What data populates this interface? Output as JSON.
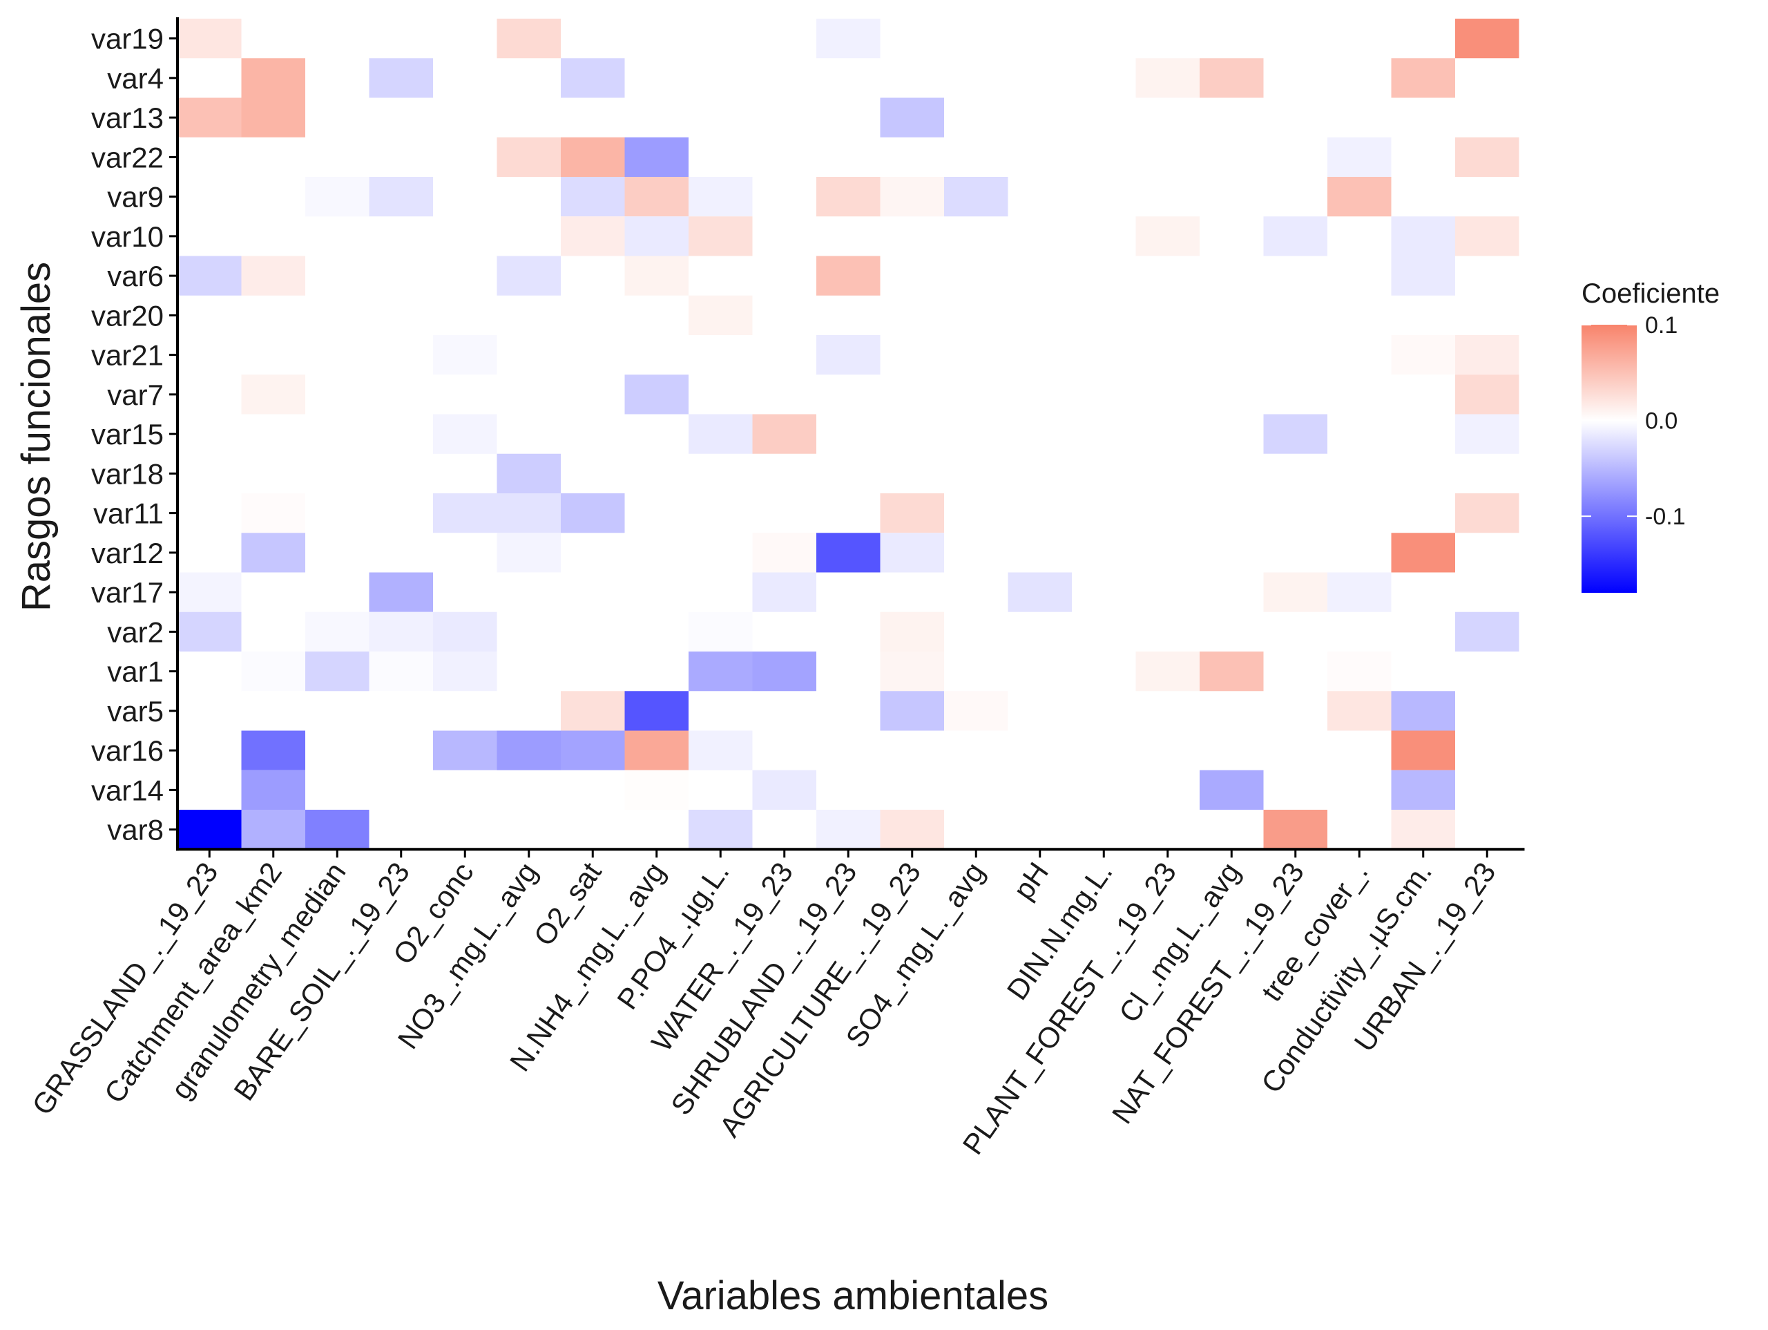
{
  "chart_data": {
    "type": "heatmap",
    "xlabel": "Variables ambientales",
    "ylabel": "Rasgos funcionales",
    "x_categories": [
      "GRASSLAND_._19_23",
      "Catchment_area_km2",
      "granulometry_median",
      "BARE_SOIL_._19_23",
      "O2_conc",
      "NO3_.mg.L._avg",
      "O2_sat",
      "N.NH4_.mg.L._avg",
      "P.PO4_.µg.L.",
      "WATER_._19_23",
      "SHRUBLAND_._19_23",
      "AGRICULTURE_._19_23",
      "SO4_.mg.L._avg",
      "pH",
      "DIN.N.mg.L.",
      "PLANT_FOREST_._19_23",
      "Cl_.mg.L._avg",
      "NAT_FOREST_._19_23",
      "tree_cover_.",
      "Conductivity_.µS.cm.",
      "URBAN_._19_23"
    ],
    "y_categories": [
      "var19",
      "var4",
      "var13",
      "var22",
      "var9",
      "var10",
      "var6",
      "var20",
      "var21",
      "var7",
      "var15",
      "var18",
      "var11",
      "var12",
      "var17",
      "var2",
      "var1",
      "var5",
      "var16",
      "var14",
      "var8"
    ],
    "cells": [
      [
        "var19",
        "GRASSLAND_._19_23",
        0.02
      ],
      [
        "var19",
        "NO3_.mg.L._avg",
        0.03
      ],
      [
        "var19",
        "SHRUBLAND_._19_23",
        -0.01
      ],
      [
        "var19",
        "URBAN_._19_23",
        0.09
      ],
      [
        "var4",
        "Catchment_area_km2",
        0.06
      ],
      [
        "var4",
        "BARE_SOIL_._19_23",
        -0.03
      ],
      [
        "var4",
        "O2_sat",
        -0.03
      ],
      [
        "var4",
        "PLANT_FOREST_._19_23",
        0.01
      ],
      [
        "var4",
        "Cl_.mg.L._avg",
        0.04
      ],
      [
        "var4",
        "Conductivity_.µS.cm.",
        0.05
      ],
      [
        "var13",
        "GRASSLAND_._19_23",
        0.05
      ],
      [
        "var13",
        "Catchment_area_km2",
        0.06
      ],
      [
        "var13",
        "AGRICULTURE_._19_23",
        -0.04
      ],
      [
        "var22",
        "NO3_.mg.L._avg",
        0.03
      ],
      [
        "var22",
        "O2_sat",
        0.06
      ],
      [
        "var22",
        "N.NH4_.mg.L._avg",
        -0.07
      ],
      [
        "var22",
        "tree_cover_.",
        -0.01
      ],
      [
        "var22",
        "URBAN_._19_23",
        0.03
      ],
      [
        "var9",
        "granulometry_median",
        -0.005
      ],
      [
        "var9",
        "BARE_SOIL_._19_23",
        -0.02
      ],
      [
        "var9",
        "O2_sat",
        -0.025
      ],
      [
        "var9",
        "N.NH4_.mg.L._avg",
        0.04
      ],
      [
        "var9",
        "P.PO4_.µg.L.",
        -0.01
      ],
      [
        "var9",
        "SHRUBLAND_._19_23",
        0.03
      ],
      [
        "var9",
        "AGRICULTURE_._19_23",
        0.008
      ],
      [
        "var9",
        "SO4_.mg.L._avg",
        -0.025
      ],
      [
        "var9",
        "tree_cover_.",
        0.05
      ],
      [
        "var10",
        "O2_sat",
        0.015
      ],
      [
        "var10",
        "N.NH4_.mg.L._avg",
        -0.015
      ],
      [
        "var10",
        "P.PO4_.µg.L.",
        0.025
      ],
      [
        "var10",
        "PLANT_FOREST_._19_23",
        0.01
      ],
      [
        "var10",
        "NAT_FOREST_._19_23",
        -0.015
      ],
      [
        "var10",
        "Conductivity_.µS.cm.",
        -0.015
      ],
      [
        "var10",
        "URBAN_._19_23",
        0.02
      ],
      [
        "var6",
        "GRASSLAND_._19_23",
        -0.03
      ],
      [
        "var6",
        "Catchment_area_km2",
        0.015
      ],
      [
        "var6",
        "NO3_.mg.L._avg",
        -0.02
      ],
      [
        "var6",
        "N.NH4_.mg.L._avg",
        0.01
      ],
      [
        "var6",
        "SHRUBLAND_._19_23",
        0.05
      ],
      [
        "var6",
        "Conductivity_.µS.cm.",
        -0.015
      ],
      [
        "var20",
        "P.PO4_.µg.L.",
        0.01
      ],
      [
        "var21",
        "O2_conc",
        -0.005
      ],
      [
        "var21",
        "SHRUBLAND_._19_23",
        -0.015
      ],
      [
        "var21",
        "Conductivity_.µS.cm.",
        0.005
      ],
      [
        "var21",
        "URBAN_._19_23",
        0.015
      ],
      [
        "var7",
        "Catchment_area_km2",
        0.01
      ],
      [
        "var7",
        "N.NH4_.mg.L._avg",
        -0.035
      ],
      [
        "var7",
        "URBAN_._19_23",
        0.03
      ],
      [
        "var15",
        "O2_conc",
        -0.008
      ],
      [
        "var15",
        "P.PO4_.µg.L.",
        -0.015
      ],
      [
        "var15",
        "WATER_._19_23",
        0.04
      ],
      [
        "var15",
        "NAT_FOREST_._19_23",
        -0.03
      ],
      [
        "var15",
        "URBAN_._19_23",
        -0.01
      ],
      [
        "var18",
        "NO3_.mg.L._avg",
        -0.035
      ],
      [
        "var11",
        "Catchment_area_km2",
        0.003
      ],
      [
        "var11",
        "O2_conc",
        -0.02
      ],
      [
        "var11",
        "NO3_.mg.L._avg",
        -0.02
      ],
      [
        "var11",
        "O2_sat",
        -0.04
      ],
      [
        "var11",
        "AGRICULTURE_._19_23",
        0.03
      ],
      [
        "var11",
        "URBAN_._19_23",
        0.03
      ],
      [
        "var12",
        "Catchment_area_km2",
        -0.04
      ],
      [
        "var12",
        "NO3_.mg.L._avg",
        -0.008
      ],
      [
        "var12",
        "WATER_._19_23",
        0.005
      ],
      [
        "var12",
        "SHRUBLAND_._19_23",
        -0.12
      ],
      [
        "var12",
        "AGRICULTURE_._19_23",
        -0.015
      ],
      [
        "var12",
        "Conductivity_.µS.cm.",
        0.09
      ],
      [
        "var17",
        "GRASSLAND_._19_23",
        -0.008
      ],
      [
        "var17",
        "BARE_SOIL_._19_23",
        -0.055
      ],
      [
        "var17",
        "WATER_._19_23",
        -0.015
      ],
      [
        "var17",
        "pH",
        -0.02
      ],
      [
        "var17",
        "NAT_FOREST_._19_23",
        0.01
      ],
      [
        "var17",
        "tree_cover_.",
        -0.01
      ],
      [
        "var2",
        "GRASSLAND_._19_23",
        -0.03
      ],
      [
        "var2",
        "granulometry_median",
        -0.005
      ],
      [
        "var2",
        "BARE_SOIL_._19_23",
        -0.01
      ],
      [
        "var2",
        "O2_conc",
        -0.015
      ],
      [
        "var2",
        "P.PO4_.µg.L.",
        -0.003
      ],
      [
        "var2",
        "AGRICULTURE_._19_23",
        0.01
      ],
      [
        "var2",
        "URBAN_._19_23",
        -0.03
      ],
      [
        "var1",
        "Catchment_area_km2",
        -0.003
      ],
      [
        "var1",
        "granulometry_median",
        -0.03
      ],
      [
        "var1",
        "BARE_SOIL_._19_23",
        -0.003
      ],
      [
        "var1",
        "O2_conc",
        -0.01
      ],
      [
        "var1",
        "P.PO4_.µg.L.",
        -0.06
      ],
      [
        "var1",
        "WATER_._19_23",
        -0.065
      ],
      [
        "var1",
        "AGRICULTURE_._19_23",
        0.008
      ],
      [
        "var1",
        "PLANT_FOREST_._19_23",
        0.01
      ],
      [
        "var1",
        "Cl_.mg.L._avg",
        0.05
      ],
      [
        "var1",
        "tree_cover_.",
        0.003
      ],
      [
        "var5",
        "O2_sat",
        0.025
      ],
      [
        "var5",
        "N.NH4_.mg.L._avg",
        -0.12
      ],
      [
        "var5",
        "AGRICULTURE_._19_23",
        -0.04
      ],
      [
        "var5",
        "SO4_.mg.L._avg",
        0.005
      ],
      [
        "var5",
        "tree_cover_.",
        0.02
      ],
      [
        "var5",
        "Conductivity_.µS.cm.",
        -0.05
      ],
      [
        "var16",
        "Catchment_area_km2",
        -0.1
      ],
      [
        "var16",
        "O2_conc",
        -0.05
      ],
      [
        "var16",
        "NO3_.mg.L._avg",
        -0.07
      ],
      [
        "var16",
        "O2_sat",
        -0.065
      ],
      [
        "var16",
        "N.NH4_.mg.L._avg",
        0.07
      ],
      [
        "var16",
        "P.PO4_.µg.L.",
        -0.01
      ],
      [
        "var16",
        "Conductivity_.µS.cm.",
        0.09
      ],
      [
        "var14",
        "Catchment_area_km2",
        -0.07
      ],
      [
        "var14",
        "N.NH4_.mg.L._avg",
        0.002
      ],
      [
        "var14",
        "WATER_._19_23",
        -0.015
      ],
      [
        "var14",
        "Cl_.mg.L._avg",
        -0.06
      ],
      [
        "var14",
        "Conductivity_.µS.cm.",
        -0.05
      ],
      [
        "var8",
        "GRASSLAND_._19_23",
        -0.18
      ],
      [
        "var8",
        "Catchment_area_km2",
        -0.055
      ],
      [
        "var8",
        "granulometry_median",
        -0.09
      ],
      [
        "var8",
        "P.PO4_.µg.L.",
        -0.025
      ],
      [
        "var8",
        "SHRUBLAND_._19_23",
        -0.01
      ],
      [
        "var8",
        "AGRICULTURE_._19_23",
        0.02
      ],
      [
        "var8",
        "NAT_FOREST_._19_23",
        0.08
      ],
      [
        "var8",
        "Conductivity_.µS.cm.",
        0.015
      ]
    ],
    "legend": {
      "title": "Coeficiente",
      "placement": "right",
      "ticks": [
        0.1,
        0.0,
        -0.1
      ],
      "tick_labels": [
        "0.1",
        "0.0",
        "-0.1"
      ],
      "range": [
        -0.18,
        0.1
      ]
    },
    "colors": {
      "low": "#0000ff",
      "mid": "#ffffff",
      "high": "#f8836b",
      "axis": "#000000"
    },
    "grid": false
  }
}
